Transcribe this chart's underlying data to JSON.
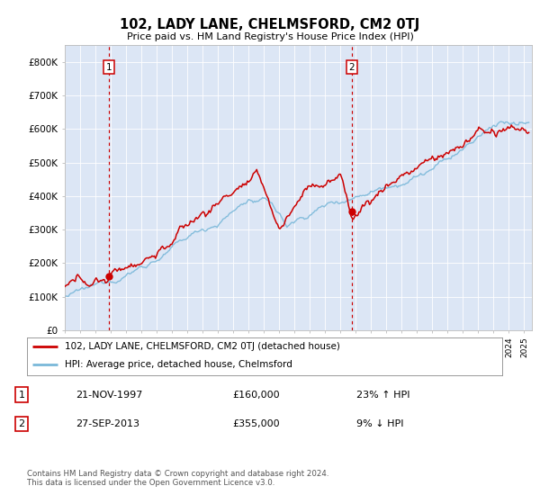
{
  "title": "102, LADY LANE, CHELMSFORD, CM2 0TJ",
  "subtitle": "Price paid vs. HM Land Registry's House Price Index (HPI)",
  "plot_bg_color": "#dce6f5",
  "ylim": [
    0,
    850000
  ],
  "yticks": [
    0,
    100000,
    200000,
    300000,
    400000,
    500000,
    600000,
    700000,
    800000
  ],
  "ytick_labels": [
    "£0",
    "£100K",
    "£200K",
    "£300K",
    "£400K",
    "£500K",
    "£600K",
    "£700K",
    "£800K"
  ],
  "sale1_date": "21-NOV-1997",
  "sale1_price": 160000,
  "sale1_pct": "23% ↑ HPI",
  "sale2_date": "27-SEP-2013",
  "sale2_price": 355000,
  "sale2_pct": "9% ↓ HPI",
  "legend_label1": "102, LADY LANE, CHELMSFORD, CM2 0TJ (detached house)",
  "legend_label2": "HPI: Average price, detached house, Chelmsford",
  "footnote": "Contains HM Land Registry data © Crown copyright and database right 2024.\nThis data is licensed under the Open Government Licence v3.0.",
  "hpi_color": "#7ab8d9",
  "price_color": "#cc0000",
  "vline_color": "#cc0000",
  "marker1_x": 1997.9,
  "marker1_y": 160000,
  "marker2_x": 2013.75,
  "marker2_y": 355000,
  "xmin": 1995,
  "xmax": 2025.5
}
